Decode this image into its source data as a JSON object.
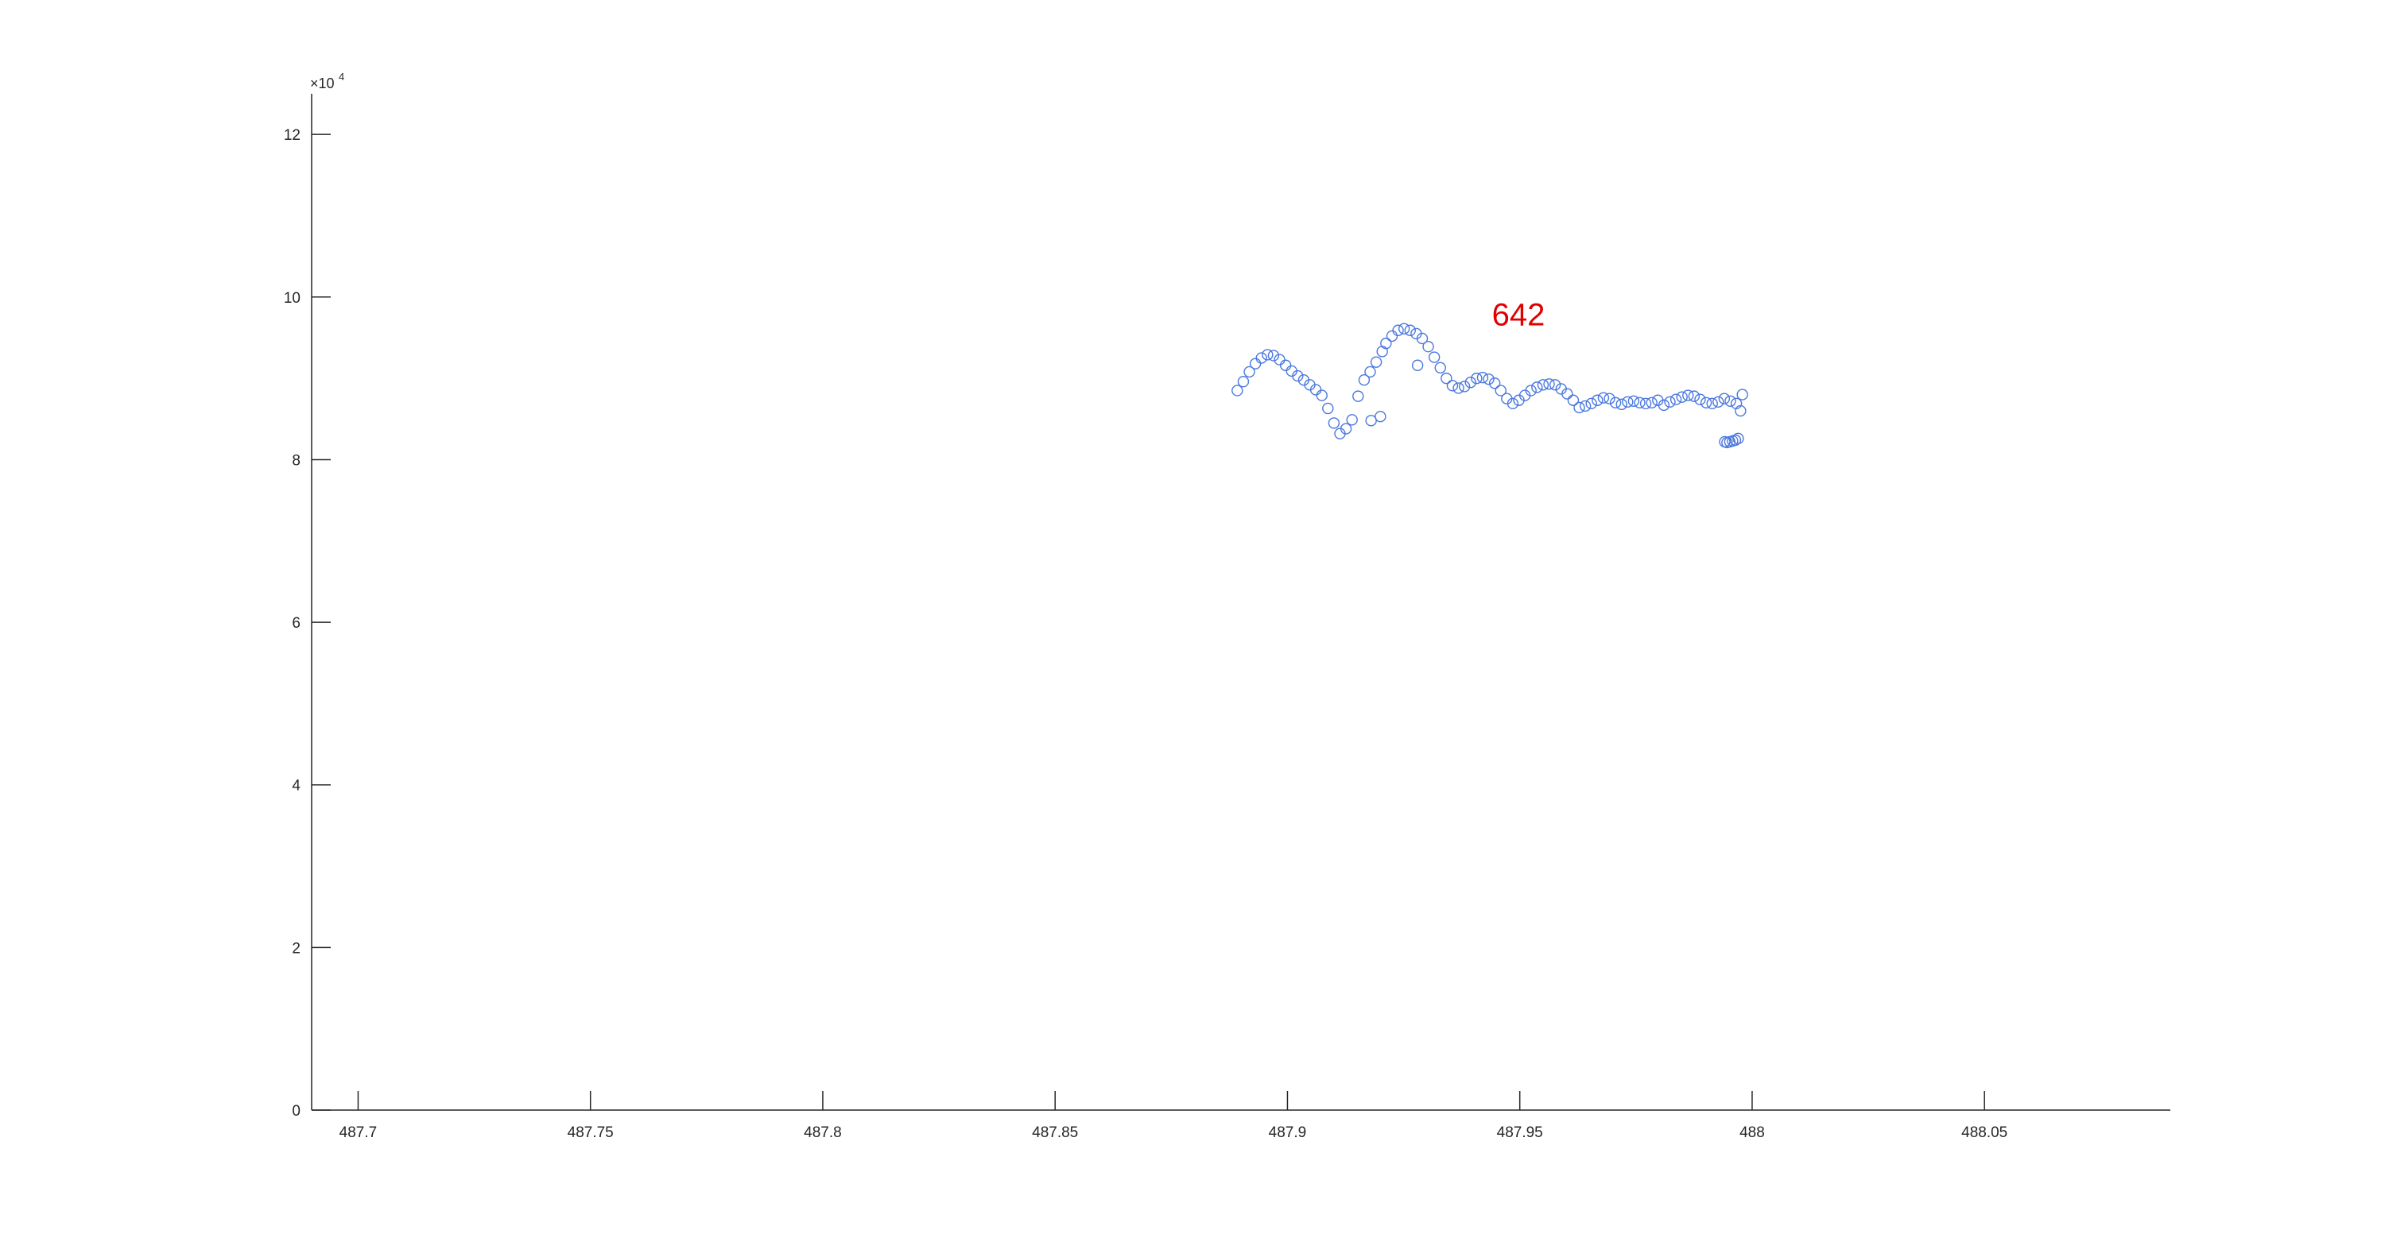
{
  "chart_data": {
    "type": "scatter",
    "title": "",
    "xlabel": "",
    "ylabel": "",
    "xlim": [
      487.69,
      488.09
    ],
    "ylim": [
      0,
      125000
    ],
    "y_exponent_label": "×10",
    "y_exponent_power": "4",
    "x_ticks": [
      487.7,
      487.75,
      487.8,
      487.85,
      487.9,
      487.95,
      488,
      488.05
    ],
    "x_tick_labels": [
      "487.7",
      "487.75",
      "487.8",
      "487.85",
      "487.9",
      "487.95",
      "488",
      "488.05"
    ],
    "y_ticks": [
      0,
      20000,
      40000,
      60000,
      80000,
      100000,
      120000
    ],
    "y_tick_labels": [
      "0",
      "2",
      "4",
      "6",
      "8",
      "10",
      "12"
    ],
    "grid": false,
    "marker": "open-circle",
    "marker_color": "#4a78e0",
    "annotation": {
      "text": "642",
      "x": 487.944,
      "y": 96500,
      "color": "#e00000"
    },
    "series": [
      {
        "x": [
          487.8892,
          487.8905,
          487.8918,
          487.8931,
          487.8944,
          487.8957,
          487.897,
          487.8983,
          487.8996,
          487.9009,
          487.9022,
          487.9035,
          487.9048,
          487.9061,
          487.9074,
          487.9087,
          487.91,
          487.9113,
          487.9126,
          487.9139,
          487.9152,
          487.9165,
          487.9178,
          487.9191,
          487.9204,
          487.9212,
          487.9225,
          487.9238,
          487.9251,
          487.9264,
          487.9277,
          487.929,
          487.9303,
          487.9316,
          487.9329,
          487.9342,
          487.9355,
          487.9368,
          487.9381,
          487.9394,
          487.9407,
          487.942,
          487.9433,
          487.9446,
          487.9459,
          487.9472,
          487.9485,
          487.9498,
          487.9511,
          487.9524,
          487.9537,
          487.955,
          487.9563,
          487.9576,
          487.9589,
          487.9602,
          487.9615,
          487.9628,
          487.9641,
          487.9654,
          487.9667,
          487.968,
          487.9693,
          487.9706,
          487.9719,
          487.9732,
          487.9745,
          487.9758,
          487.9771,
          487.9784,
          487.9797,
          487.981,
          487.9823,
          487.9836,
          487.9849,
          487.9862,
          487.9875,
          487.9888,
          487.9901,
          487.9914,
          487.9927,
          487.994,
          487.9953,
          487.9966,
          487.9979,
          487.9975,
          487.9941,
          487.9946,
          487.9952,
          487.9958,
          487.9964,
          487.997,
          487.928,
          487.918,
          487.92
        ],
        "y": [
          88500,
          89600,
          90800,
          91800,
          92500,
          92900,
          92800,
          92300,
          91600,
          90900,
          90300,
          89800,
          89200,
          88600,
          87900,
          86300,
          84500,
          83200,
          83800,
          84900,
          87800,
          89800,
          90800,
          92000,
          93300,
          94300,
          95200,
          95900,
          96100,
          95900,
          95500,
          94900,
          93900,
          92600,
          91300,
          90000,
          89100,
          88800,
          89000,
          89500,
          90000,
          90100,
          89900,
          89400,
          88500,
          87500,
          86900,
          87300,
          87900,
          88500,
          88900,
          89200,
          89300,
          89200,
          88700,
          88100,
          87300,
          86400,
          86600,
          86900,
          87300,
          87600,
          87500,
          87000,
          86800,
          87100,
          87200,
          87000,
          86900,
          87000,
          87300,
          86700,
          87100,
          87400,
          87700,
          87900,
          87800,
          87400,
          87000,
          86900,
          87100,
          87500,
          87200,
          86900,
          88000,
          86000,
          82200,
          82100,
          82200,
          82300,
          82400,
          82600,
          91600,
          84800,
          85300
        ]
      }
    ]
  }
}
